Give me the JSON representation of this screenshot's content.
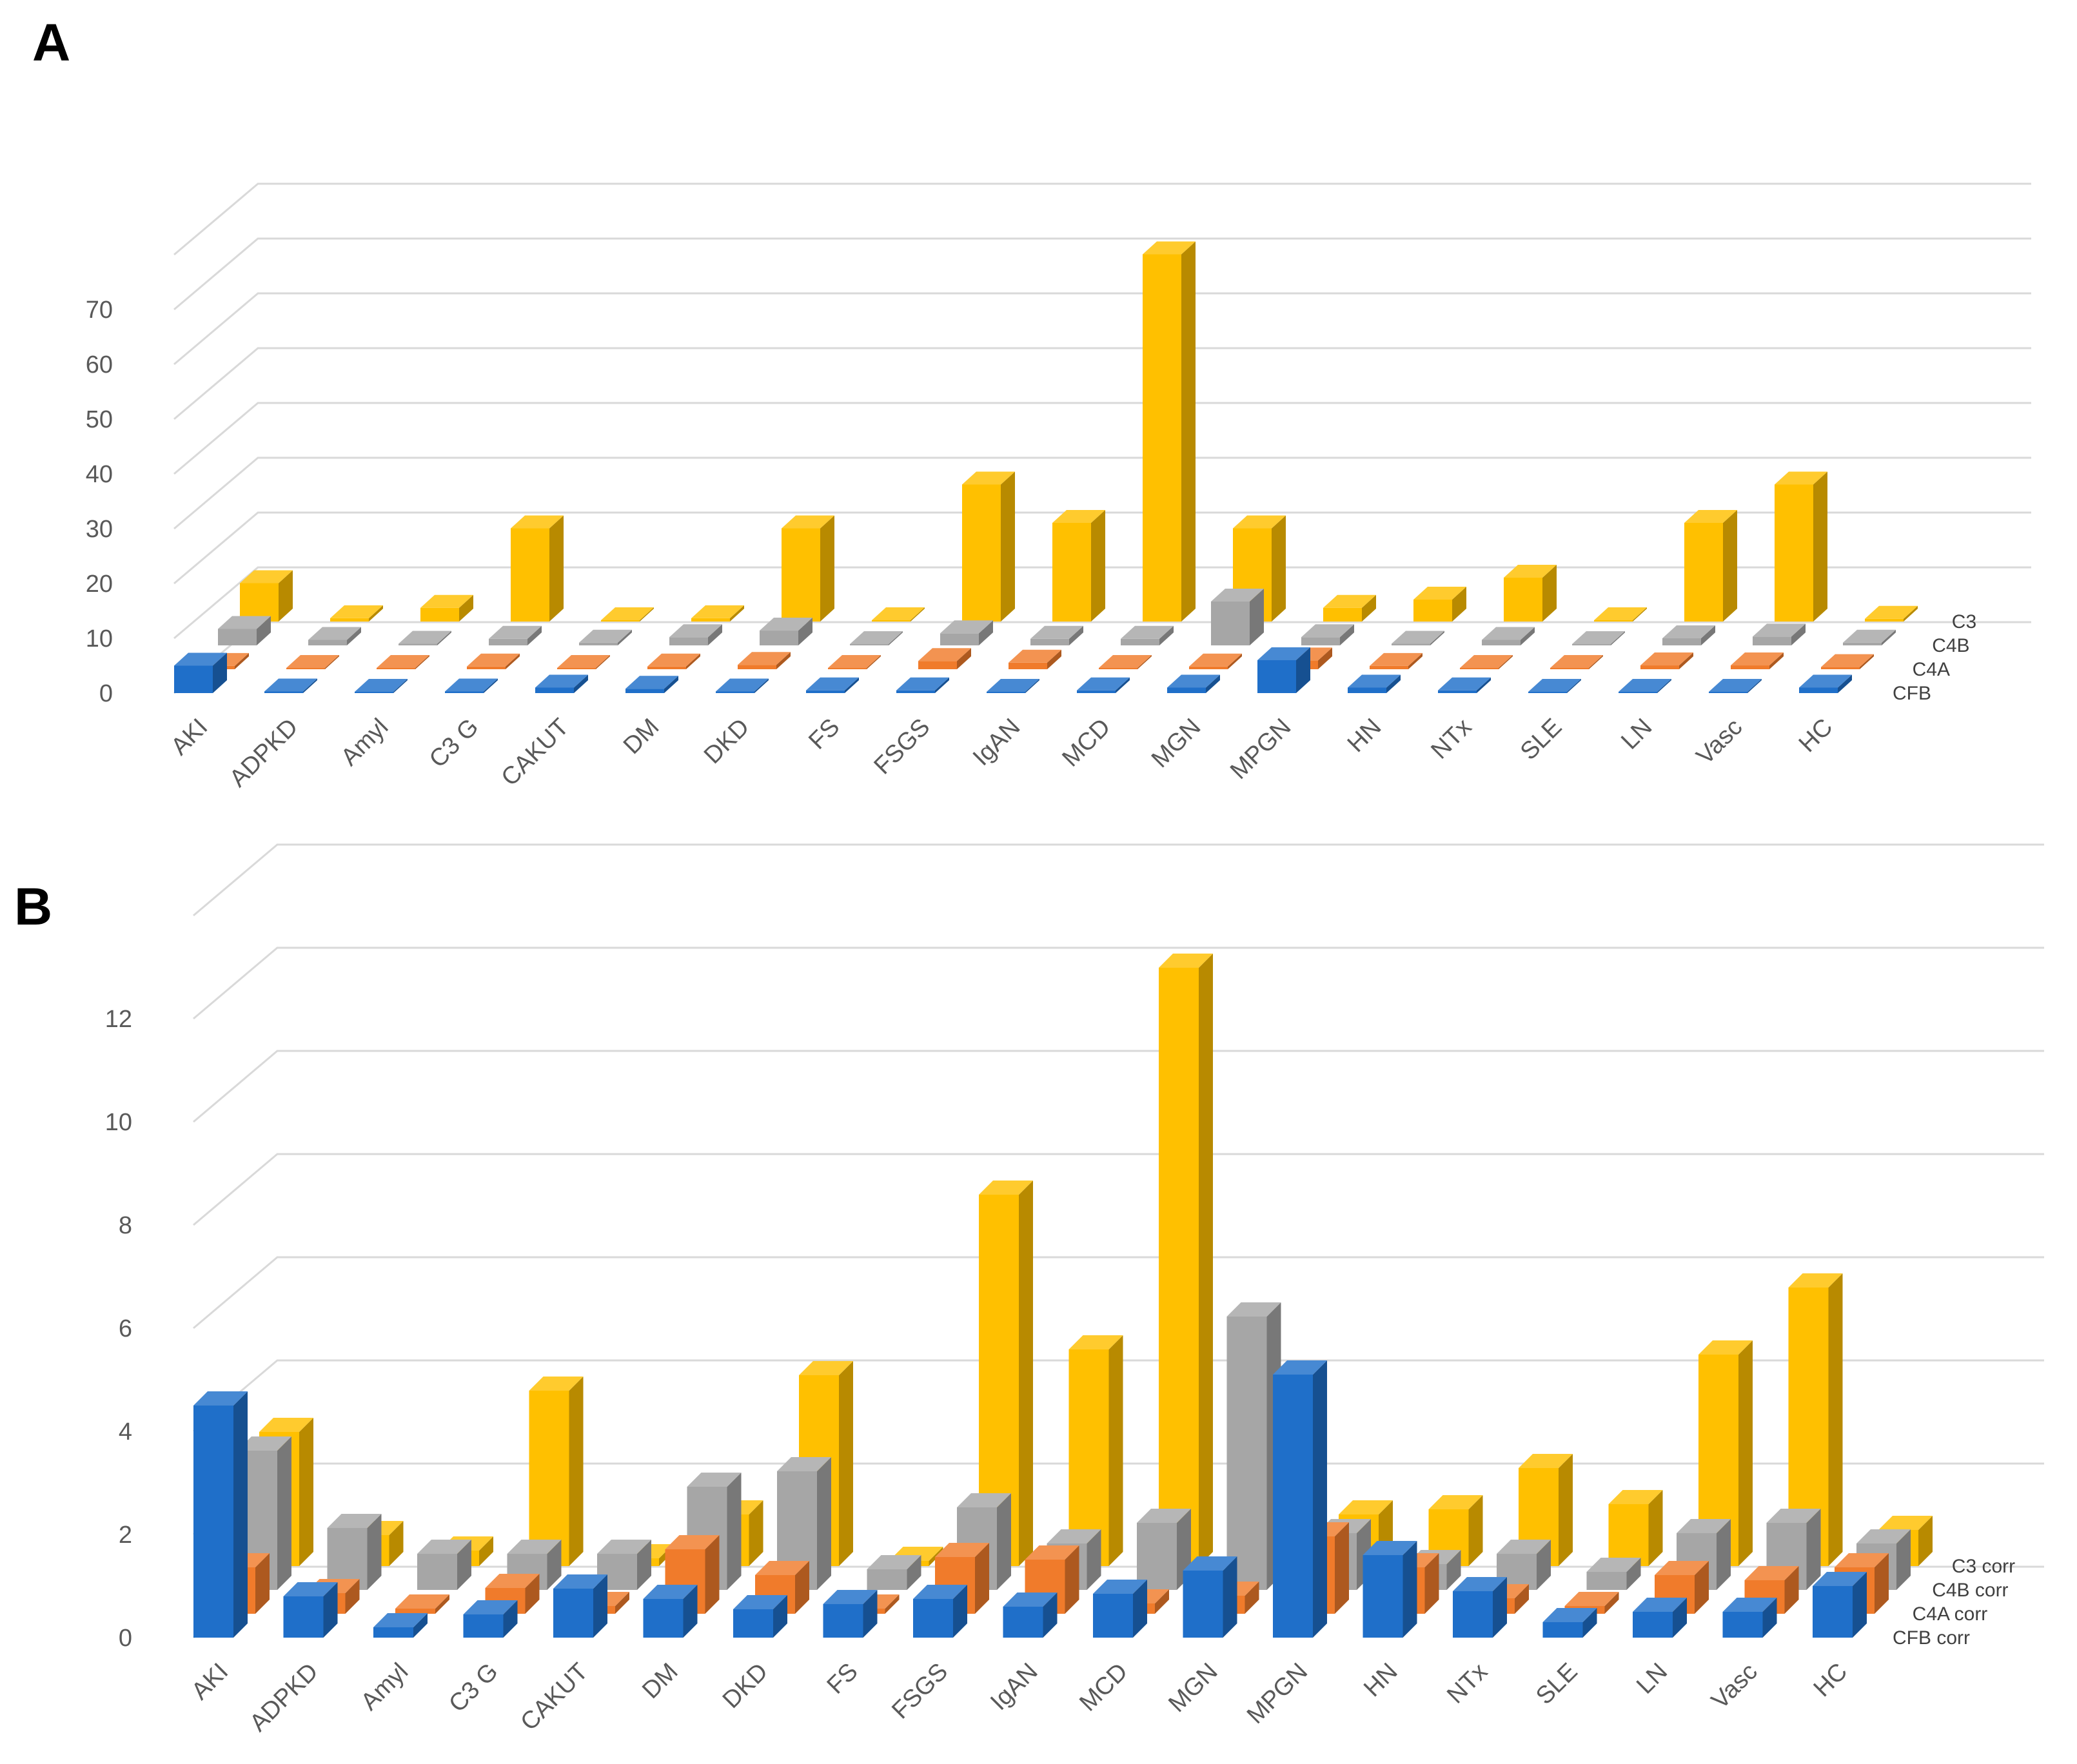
{
  "panels": {
    "a": {
      "label": "A"
    },
    "b": {
      "label": "B"
    }
  },
  "chart_data": [
    {
      "type": "bar",
      "style": "3d-column",
      "categories": [
        "AKI",
        "ADPKD",
        "Amyl",
        "C3 G",
        "CAKUT",
        "DM",
        "DKD",
        "FS",
        "FSGS",
        "IgAN",
        "MCD",
        "MGN",
        "MPGN",
        "HN",
        "NTx",
        "SLE",
        "LN",
        "Vasc",
        "HC"
      ],
      "yticks": [
        0,
        10,
        20,
        30,
        40,
        50,
        60,
        70
      ],
      "ylim": [
        0,
        80
      ],
      "grid": true,
      "title": "",
      "xlabel": "",
      "ylabel": "",
      "series": [
        {
          "name": "CFB",
          "color": "#1f6fc9",
          "values": [
            5,
            0.3,
            0,
            0.3,
            1,
            0.8,
            0.3,
            0.5,
            0.5,
            0.2,
            0.5,
            1,
            6,
            1,
            0.5,
            0,
            0.2,
            0.2,
            1
          ]
        },
        {
          "name": "C4A",
          "color": "#f07b2b",
          "values": [
            0.6,
            0,
            0,
            0.5,
            0,
            0.5,
            0.8,
            0,
            1.5,
            1.2,
            0,
            0.5,
            1.6,
            0.6,
            0.1,
            0,
            0.7,
            0.7,
            0.4
          ]
        },
        {
          "name": "C4B",
          "color": "#a6a6a6",
          "values": [
            3,
            1,
            0.3,
            1.2,
            0.5,
            1.5,
            2.7,
            0.2,
            2.2,
            1.2,
            1.2,
            8,
            1.5,
            0.3,
            1,
            0.1,
            1.3,
            1.6,
            0.5
          ]
        },
        {
          "name": "C3",
          "color": "#ffc000",
          "values": [
            7,
            0.6,
            2.5,
            17,
            0,
            0.6,
            17,
            0,
            25,
            18,
            67,
            17,
            2.5,
            4,
            8,
            0,
            18,
            25,
            0.5
          ]
        }
      ]
    },
    {
      "type": "bar",
      "style": "3d-column",
      "categories": [
        "AKI",
        "ADPKD",
        "Amyl",
        "C3 G",
        "CAKUT",
        "DM",
        "DKD",
        "FS",
        "FSGS",
        "IgAN",
        "MCD",
        "MGN",
        "MPGN",
        "HN",
        "NTx",
        "SLE",
        "LN",
        "Vasc",
        "HC"
      ],
      "yticks": [
        0,
        2,
        4,
        6,
        8,
        10,
        12
      ],
      "ylim": [
        0,
        14
      ],
      "grid": true,
      "title": "",
      "xlabel": "",
      "ylabel": "",
      "series": [
        {
          "name": "CFB corr",
          "color": "#1f6fc9",
          "values": [
            4.5,
            0.8,
            0.2,
            0.45,
            0.95,
            0.75,
            0.55,
            0.65,
            0.75,
            0.6,
            0.85,
            1.3,
            5.1,
            1.6,
            0.9,
            0.3,
            0.5,
            0.5,
            1.0
          ]
        },
        {
          "name": "C4A corr",
          "color": "#f07b2b",
          "values": [
            0.9,
            0.4,
            0.1,
            0.5,
            0.15,
            1.25,
            0.75,
            0.1,
            1.1,
            1.05,
            0.2,
            0.35,
            1.5,
            0.9,
            0.3,
            0.15,
            0.75,
            0.65,
            0.9
          ]
        },
        {
          "name": "C4B corr",
          "color": "#a6a6a6",
          "values": [
            2.7,
            1.2,
            0.7,
            0.7,
            0.7,
            2.0,
            2.3,
            0.4,
            1.6,
            0.9,
            1.3,
            5.3,
            1.1,
            0.5,
            0.7,
            0.35,
            1.1,
            1.3,
            0.9
          ]
        },
        {
          "name": "C3 corr",
          "color": "#ffc000",
          "values": [
            2.6,
            0.6,
            0.3,
            3.4,
            0.15,
            1.0,
            3.7,
            0.1,
            7.2,
            4.2,
            11.6,
            0.6,
            1.0,
            1.1,
            1.9,
            1.2,
            4.1,
            5.4,
            0.7
          ]
        }
      ]
    }
  ]
}
